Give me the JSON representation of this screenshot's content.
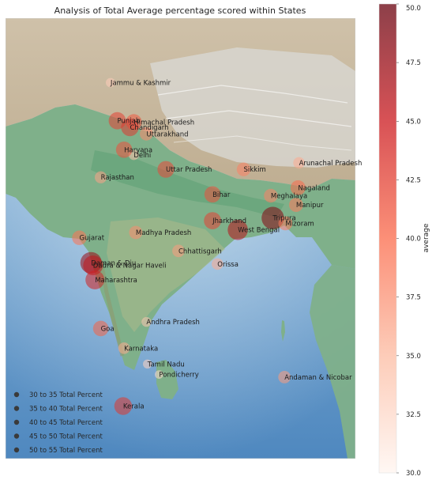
{
  "chart_data": {
    "type": "scatter",
    "title": "Analysis of Total Average percentage scored within States",
    "map_region": "Indian subcontinent (shaded-relief basemap)",
    "points": [
      {
        "name": "Jammu & Kashmir",
        "lon": 74.8,
        "lat": 34.1,
        "value": 33.5
      },
      {
        "name": "Punjab",
        "lon": 75.5,
        "lat": 31.2,
        "value": 42.5
      },
      {
        "name": "Himachal Pradesh",
        "lon": 77.2,
        "lat": 31.1,
        "value": 41.0
      },
      {
        "name": "Chandigarh",
        "lon": 76.8,
        "lat": 30.7,
        "value": 43.0
      },
      {
        "name": "Uttarakhand",
        "lon": 78.5,
        "lat": 30.2,
        "value": 38.0
      },
      {
        "name": "Delhi",
        "lon": 77.2,
        "lat": 28.6,
        "value": 34.5
      },
      {
        "name": "Haryana",
        "lon": 76.2,
        "lat": 29.0,
        "value": 41.5
      },
      {
        "name": "Uttar Pradesh",
        "lon": 80.5,
        "lat": 27.5,
        "value": 42.0
      },
      {
        "name": "Rajasthan",
        "lon": 73.8,
        "lat": 26.9,
        "value": 36.5
      },
      {
        "name": "Sikkim",
        "lon": 88.5,
        "lat": 27.5,
        "value": 38.5
      },
      {
        "name": "Arunachal Pradesh",
        "lon": 94.2,
        "lat": 28.0,
        "value": 36.0
      },
      {
        "name": "Bihar",
        "lon": 85.3,
        "lat": 25.6,
        "value": 41.5
      },
      {
        "name": "Meghalaya",
        "lon": 91.3,
        "lat": 25.5,
        "value": 38.5
      },
      {
        "name": "Nagaland",
        "lon": 94.1,
        "lat": 26.1,
        "value": 40.0
      },
      {
        "name": "Manipur",
        "lon": 93.9,
        "lat": 24.8,
        "value": 39.0
      },
      {
        "name": "Tripura",
        "lon": 91.5,
        "lat": 23.8,
        "value": 48.5
      },
      {
        "name": "Mizoram",
        "lon": 92.8,
        "lat": 23.4,
        "value": 39.0
      },
      {
        "name": "Jharkhand",
        "lon": 85.3,
        "lat": 23.6,
        "value": 42.5
      },
      {
        "name": "West Bengal",
        "lon": 87.9,
        "lat": 22.9,
        "value": 46.0
      },
      {
        "name": "Gujarat",
        "lon": 71.6,
        "lat": 22.3,
        "value": 39.5
      },
      {
        "name": "Daman & Diu",
        "lon": 72.8,
        "lat": 20.4,
        "value": 47.5
      },
      {
        "name": "Madhya Pradesh",
        "lon": 77.4,
        "lat": 22.7,
        "value": 38.0
      },
      {
        "name": "Chhattisgarh",
        "lon": 81.8,
        "lat": 21.3,
        "value": 37.0
      },
      {
        "name": "Dadra & Nagar Haveli",
        "lon": 73.0,
        "lat": 20.2,
        "value": 45.5
      },
      {
        "name": "Maharashtra",
        "lon": 73.2,
        "lat": 19.1,
        "value": 44.5
      },
      {
        "name": "Orissa",
        "lon": 85.8,
        "lat": 20.3,
        "value": 36.0
      },
      {
        "name": "Goa",
        "lon": 73.8,
        "lat": 15.4,
        "value": 40.5
      },
      {
        "name": "Andhra Pradesh",
        "lon": 78.5,
        "lat": 15.9,
        "value": 34.0
      },
      {
        "name": "Karnataka",
        "lon": 76.2,
        "lat": 13.9,
        "value": 36.0
      },
      {
        "name": "Tamil Nadu",
        "lon": 78.6,
        "lat": 12.7,
        "value": 33.0
      },
      {
        "name": "Pondicherry",
        "lon": 79.8,
        "lat": 11.9,
        "value": 32.5
      },
      {
        "name": "Kerala",
        "lon": 76.1,
        "lat": 9.5,
        "value": 43.0
      },
      {
        "name": "Andaman & Nicobar",
        "lon": 92.7,
        "lat": 11.7,
        "value": 37.0
      }
    ],
    "legend": {
      "placement": "lower-left",
      "entries": [
        "30 to 35 Total Percent",
        "35 to 40 Total Percent",
        "40 to 45 Total Percent",
        "45 to 50 Total Percent",
        "50 to 55 Total Percent"
      ]
    },
    "colorbar": {
      "label": "average",
      "min": 30.0,
      "max": 50.0,
      "ticks": [
        "30.0",
        "32.5",
        "35.0",
        "37.5",
        "40.0",
        "42.5",
        "45.0",
        "47.5",
        "50.0"
      ],
      "colormap": "Reds",
      "low_color": "#fff5f0",
      "high_color": "#67000d"
    }
  }
}
